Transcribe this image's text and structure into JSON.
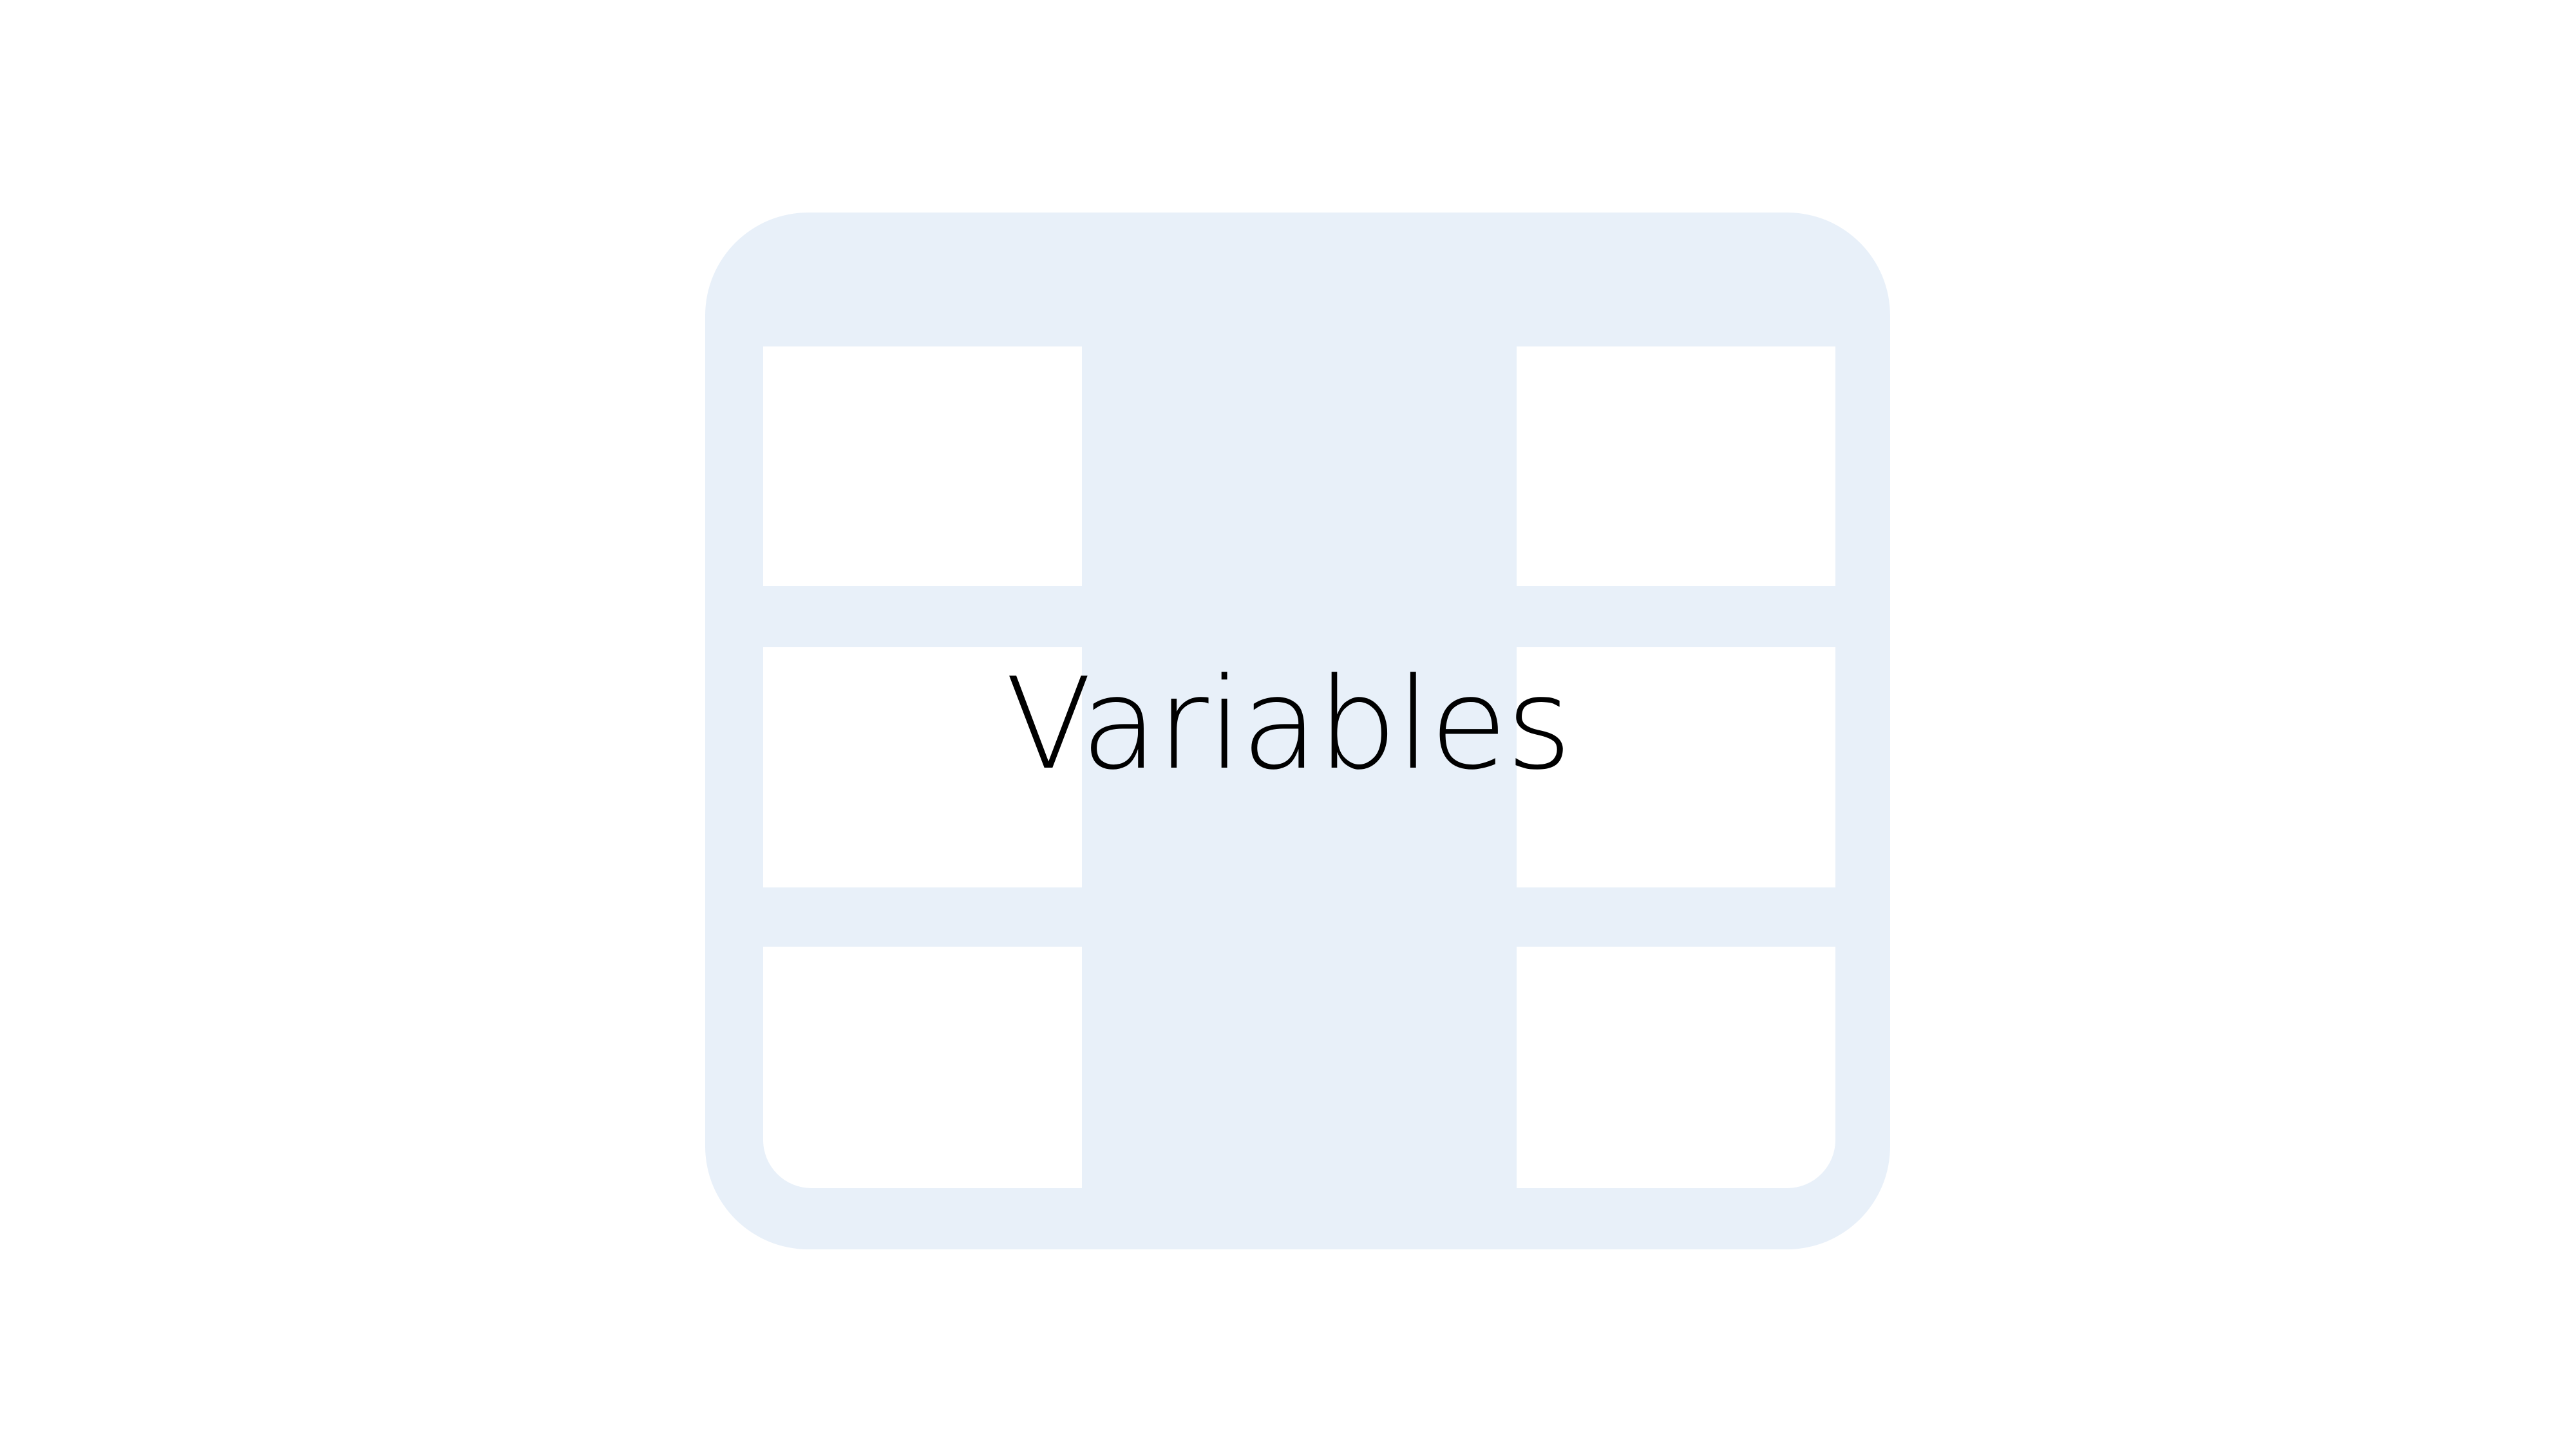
{
  "slide": {
    "title": "Variables",
    "icon": "table-grid-icon"
  },
  "colors": {
    "background": "#ffffff",
    "icon_fill": "#e8f0f9",
    "text": "#000000"
  }
}
